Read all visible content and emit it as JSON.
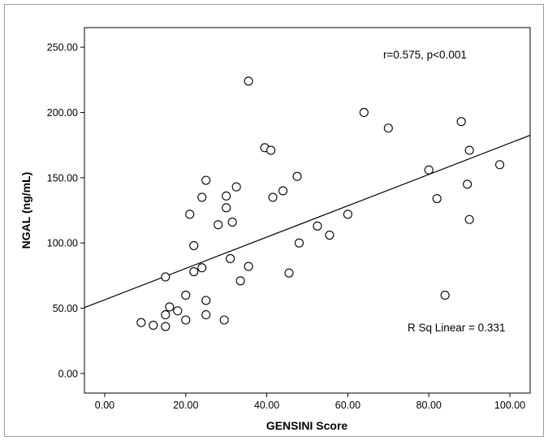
{
  "chart_data": {
    "type": "scatter",
    "title": "",
    "xlabel": "GENSINI Score",
    "ylabel": "NGAL (ng/mL)",
    "xlim": [
      -5,
      105
    ],
    "ylim": [
      -15,
      265
    ],
    "x_ticks": [
      "0.00",
      "20.00",
      "40.00",
      "60.00",
      "80.00",
      "100.00"
    ],
    "y_ticks": [
      "0.00",
      "50.00",
      "100.00",
      "150.00",
      "200.00",
      "250.00"
    ],
    "grid": false,
    "annotations": {
      "correlation": "r=0.575, p<0.001",
      "r_squared": "R Sq Linear = 0.331"
    },
    "fit_line": {
      "intercept": 56.5,
      "slope": 1.2
    },
    "points": [
      {
        "x": 9,
        "y": 39
      },
      {
        "x": 12,
        "y": 37
      },
      {
        "x": 15,
        "y": 36
      },
      {
        "x": 15,
        "y": 45
      },
      {
        "x": 16,
        "y": 51
      },
      {
        "x": 15,
        "y": 74
      },
      {
        "x": 18,
        "y": 48
      },
      {
        "x": 20,
        "y": 41
      },
      {
        "x": 20,
        "y": 60
      },
      {
        "x": 21,
        "y": 122
      },
      {
        "x": 22,
        "y": 78
      },
      {
        "x": 22,
        "y": 98
      },
      {
        "x": 24,
        "y": 81
      },
      {
        "x": 24,
        "y": 135
      },
      {
        "x": 25,
        "y": 148
      },
      {
        "x": 25,
        "y": 56
      },
      {
        "x": 25,
        "y": 45
      },
      {
        "x": 28,
        "y": 114
      },
      {
        "x": 29.5,
        "y": 41
      },
      {
        "x": 30,
        "y": 136
      },
      {
        "x": 30,
        "y": 127
      },
      {
        "x": 31,
        "y": 88
      },
      {
        "x": 31.5,
        "y": 116
      },
      {
        "x": 32.5,
        "y": 143
      },
      {
        "x": 33.5,
        "y": 71
      },
      {
        "x": 35.5,
        "y": 82
      },
      {
        "x": 35.5,
        "y": 224
      },
      {
        "x": 39.5,
        "y": 173
      },
      {
        "x": 41,
        "y": 171
      },
      {
        "x": 41.5,
        "y": 135
      },
      {
        "x": 44,
        "y": 140
      },
      {
        "x": 45.5,
        "y": 77
      },
      {
        "x": 47.5,
        "y": 151
      },
      {
        "x": 48,
        "y": 100
      },
      {
        "x": 52.5,
        "y": 113
      },
      {
        "x": 55.5,
        "y": 106
      },
      {
        "x": 60,
        "y": 122
      },
      {
        "x": 64,
        "y": 200
      },
      {
        "x": 70,
        "y": 188
      },
      {
        "x": 80,
        "y": 156
      },
      {
        "x": 82,
        "y": 134
      },
      {
        "x": 84,
        "y": 60
      },
      {
        "x": 88,
        "y": 193
      },
      {
        "x": 89.5,
        "y": 145
      },
      {
        "x": 90,
        "y": 171
      },
      {
        "x": 90,
        "y": 118
      },
      {
        "x": 97.5,
        "y": 160
      }
    ]
  }
}
